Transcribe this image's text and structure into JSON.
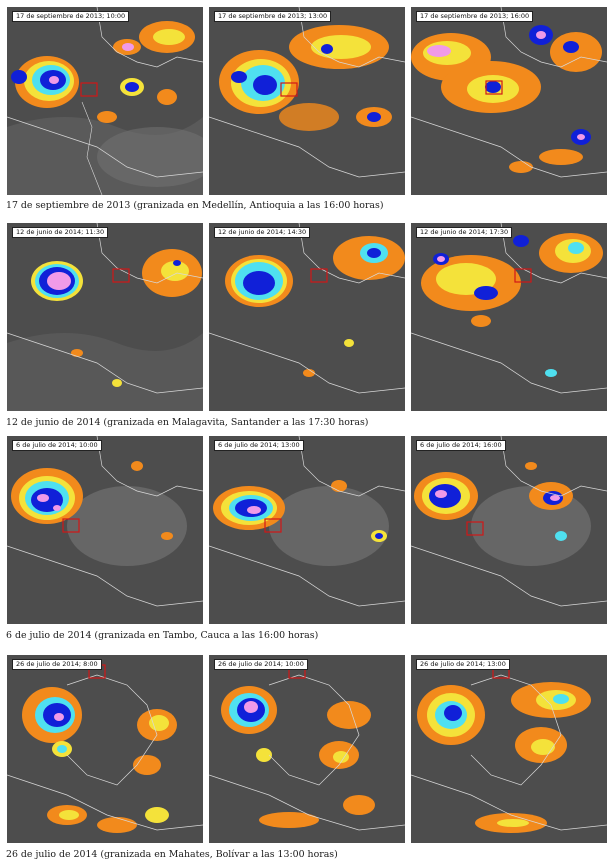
{
  "figure_rows": [
    {
      "caption": "17 de septiembre de 2013 (granizada en Medellín, Antioquia a las 16:00 horas)",
      "panels": [
        {
          "timestamp": "17 de septiembre de 2013; 10:00"
        },
        {
          "timestamp": "17 de septiembre de 2013; 13:00"
        },
        {
          "timestamp": "17 de septiembre de 2013; 16:00"
        }
      ]
    },
    {
      "caption": "12 de junio de 2014 (granizada en Malagavita, Santander a las 17:30 horas)",
      "panels": [
        {
          "timestamp": "12 de junio de 2014; 11:30"
        },
        {
          "timestamp": "12 de junio de 2014; 14:30"
        },
        {
          "timestamp": "12 de junio de 2014; 17:30"
        }
      ]
    },
    {
      "caption": "6 de julio de 2014 (granizada en Tambo, Cauca a las 16:00 horas)",
      "panels": [
        {
          "timestamp": "6 de julio de 2014; 10:00"
        },
        {
          "timestamp": "6 de julio de 2014; 13:00"
        },
        {
          "timestamp": "6 de julio de 2014; 16:00"
        }
      ]
    },
    {
      "caption": "26 de julio de 2014 (granizada en Mahates, Bolívar a las 13:00 horas)",
      "panels": [
        {
          "timestamp": "26 de julio de 2014; 8:00"
        },
        {
          "timestamp": "26 de julio de 2014; 10:00"
        },
        {
          "timestamp": "26 de julio de 2014; 13:00"
        }
      ]
    }
  ],
  "colors": {
    "background_gray": "#4a4a4a",
    "cloud_light": "#bdbdbd",
    "cloud_mid": "#8c8c8c",
    "orange": "#f28a1c",
    "yellow": "#f4e23a",
    "cyan": "#4fe0f0",
    "blue": "#1020d8",
    "pink": "#f09ae8",
    "outline": "#d8d8d8",
    "target_box": "#d01818"
  }
}
